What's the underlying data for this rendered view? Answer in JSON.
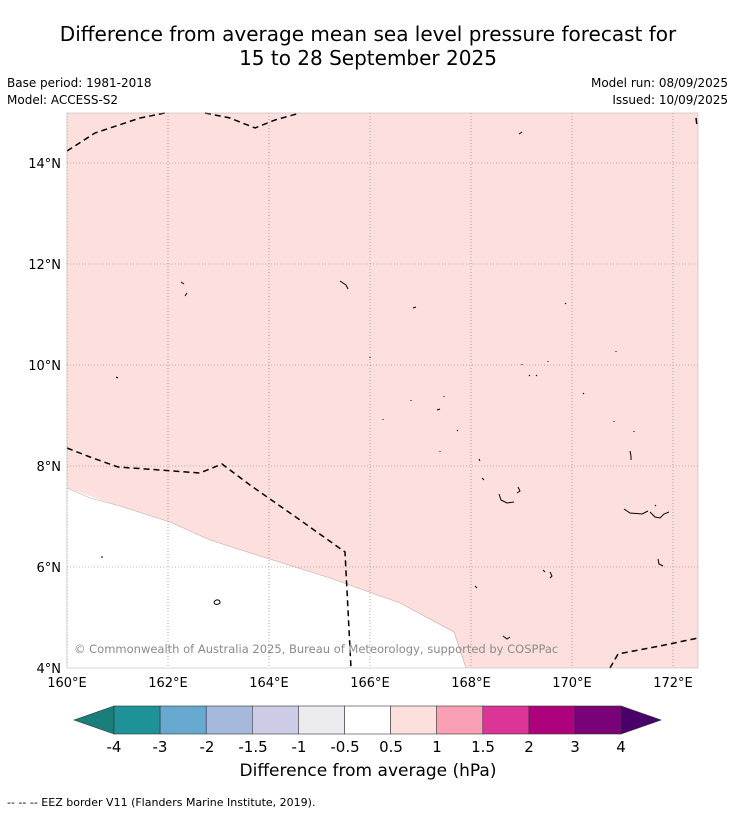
{
  "title_line1": "Difference from average mean sea level pressure forecast for",
  "title_line2": "15 to 28 September 2025",
  "base_period": "Base period: 1981-2018",
  "model": "Model: ACCESS-S2",
  "model_run": "Model run: 08/09/2025",
  "issued": "Issued: 10/09/2025",
  "copyright": "© Commonwealth of Australia 2025, Bureau of Meteorology, supported by COSPPac",
  "map": {
    "lon_range": [
      160,
      172.5
    ],
    "lat_range": [
      4,
      15
    ],
    "lon_ticks": [
      "160°E",
      "162°E",
      "164°E",
      "166°E",
      "168°E",
      "170°E",
      "172°E"
    ],
    "lat_ticks": [
      "4°N",
      "6°N",
      "8°N",
      "10°N",
      "12°N",
      "14°N"
    ],
    "fill_color": "#fde0dd",
    "neutral_color": "#ffffff",
    "border_style": "dashed"
  },
  "colorbar": {
    "title": "Difference from average (hPa)",
    "labels": [
      "-4",
      "-3",
      "-2",
      "-1.5",
      "-1",
      "-0.5",
      "0.5",
      "1",
      "1.5",
      "2",
      "3",
      "4"
    ],
    "colors": [
      "#1a7f7a",
      "#1d9399",
      "#67a9d0",
      "#a6b9dc",
      "#cccce6",
      "#ecebf0",
      "#ffffff",
      "#fde0dd",
      "#fa9fb5",
      "#dd3497",
      "#ae017e",
      "#7a0177",
      "#49006a"
    ]
  },
  "legend_note": "--  --  -- EEZ border V11 (Flanders Marine Institute, 2019)."
}
